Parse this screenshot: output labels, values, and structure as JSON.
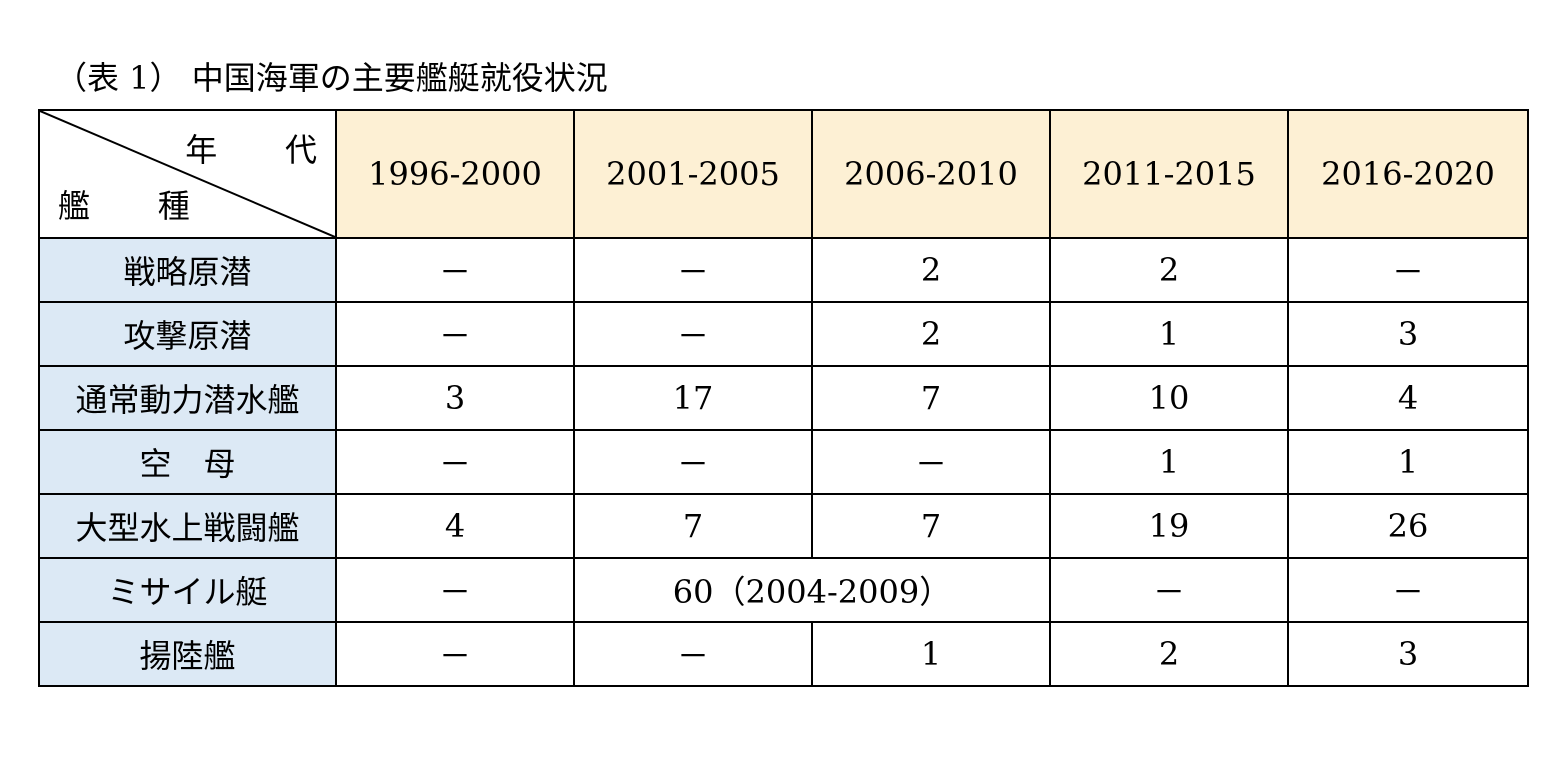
{
  "caption": "（表 1） 中国海軍の主要艦艇就役状況",
  "header": {
    "corner_top": "年 代",
    "corner_bottom": "艦 種",
    "years": [
      "1996-2000",
      "2001-2005",
      "2006-2010",
      "2011-2015",
      "2016-2020"
    ]
  },
  "rows": [
    {
      "label": "戦略原潜",
      "cells": [
        "－",
        "－",
        "2",
        "2",
        "－"
      ]
    },
    {
      "label": "攻撃原潜",
      "cells": [
        "－",
        "－",
        "2",
        "1",
        "3"
      ]
    },
    {
      "label": "通常動力潜水艦",
      "cells": [
        "3",
        "17",
        "7",
        "10",
        "4"
      ]
    },
    {
      "label": "空　母",
      "cells": [
        "－",
        "－",
        "－",
        "1",
        "1"
      ]
    },
    {
      "label": "大型水上戦闘艦",
      "cells": [
        "4",
        "7",
        "7",
        "19",
        "26"
      ]
    },
    {
      "label": "ミサイル艇",
      "cells": [
        "－",
        "60（2004-2009）",
        "－",
        "－"
      ]
    },
    {
      "label": "揚陸艦",
      "cells": [
        "－",
        "－",
        "1",
        "2",
        "3"
      ]
    }
  ],
  "colors": {
    "header_bg": "#fdf0d4",
    "row_label_bg": "#dce9f5",
    "border": "#000000"
  }
}
